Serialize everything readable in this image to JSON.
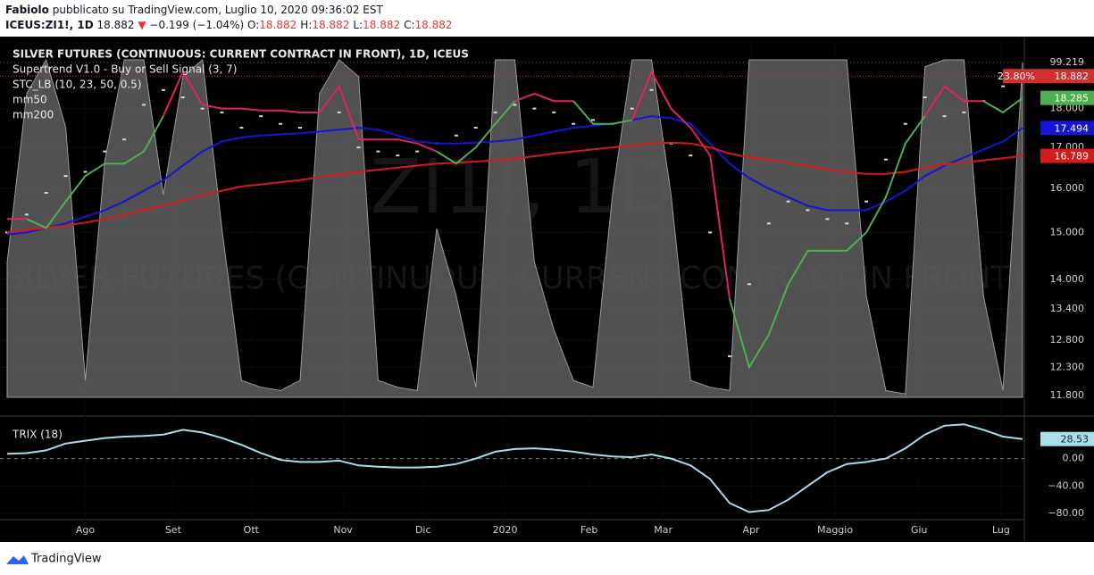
{
  "header": {
    "author": "Fabiolo",
    "published": "pubblicato su TradingView.com, Luglio 10, 2020 09:36:02 EST",
    "symbol": "ICEUS:ZI1!, 1D",
    "last": "18.882",
    "arrow": "▼",
    "change": "−0.199 (−1.04%)",
    "ohlc": [
      {
        "key": "O:",
        "value": "18.882"
      },
      {
        "key": "H:",
        "value": "18.882"
      },
      {
        "key": "L:",
        "value": "18.882"
      },
      {
        "key": "C:",
        "value": "18.882"
      }
    ]
  },
  "chart_data": [
    {
      "type": "line",
      "log_scale": true,
      "watermark": [
        "ZI1!, 1D",
        "SILVER FUTURES (CONTINUOUS: CURRENT CONTRACT IN FRONT)"
      ],
      "x": [
        0,
        1,
        2,
        3,
        4,
        5,
        6,
        7,
        8,
        9,
        10,
        11,
        12,
        13,
        14,
        15,
        16,
        17,
        18,
        19,
        20,
        21,
        22,
        23,
        24,
        25,
        26,
        27,
        28,
        29,
        30,
        31,
        32,
        33,
        34,
        35,
        36,
        37,
        38,
        39,
        40,
        41,
        42,
        43,
        44,
        45,
        46,
        47,
        48,
        49,
        50,
        51,
        52
      ],
      "xlim": [
        0,
        52
      ],
      "xticks": [
        {
          "value": 4.0,
          "label": "Ago"
        },
        {
          "value": 8.5,
          "label": "Set"
        },
        {
          "value": 12.5,
          "label": "Ott"
        },
        {
          "value": 17.2,
          "label": "Nov"
        },
        {
          "value": 21.3,
          "label": "Dic"
        },
        {
          "value": 25.5,
          "label": "2020"
        },
        {
          "value": 29.8,
          "label": "Feb"
        },
        {
          "value": 33.6,
          "label": "Mar"
        },
        {
          "value": 38.1,
          "label": "Apr"
        },
        {
          "value": 42.4,
          "label": "Maggio"
        },
        {
          "value": 46.7,
          "label": "Giu"
        },
        {
          "value": 50.9,
          "label": "Lug"
        }
      ],
      "ylim": [
        11.66,
        19.57
      ],
      "yticks": [
        {
          "value": 11.8,
          "label": "11.800"
        },
        {
          "value": 12.3,
          "label": "12.300"
        },
        {
          "value": 12.8,
          "label": "12.800"
        },
        {
          "value": 13.4,
          "label": "13.400"
        },
        {
          "value": 14,
          "label": "14.000"
        },
        {
          "value": 15,
          "label": "15.000"
        },
        {
          "value": 16,
          "label": "16.000"
        },
        {
          "value": 17,
          "label": "17.000"
        },
        {
          "value": 18,
          "label": "18.000"
        }
      ],
      "y2lim": [
        0,
        100
      ],
      "change_tag": {
        "value": 23.8,
        "label": "23.80%",
        "color": "#d32f2f"
      },
      "series": [
        {
          "name": "SILVER FUTURES (CONTINUOUS: CURRENT CONTRACT IN FRONT), 1D, ICEUS",
          "style": "dots",
          "color": "#d8d8d8",
          "tag_color": "#d32f2f",
          "values": [
            15.0,
            15.4,
            15.9,
            16.3,
            16.4,
            16.9,
            17.2,
            18.1,
            18.5,
            18.3,
            18.0,
            17.9,
            17.5,
            17.8,
            17.6,
            17.5,
            17.4,
            17.9,
            17.0,
            16.9,
            16.8,
            16.9,
            17.1,
            17.3,
            17.5,
            17.9,
            18.1,
            18.0,
            17.9,
            17.6,
            17.7,
            17.6,
            18.0,
            18.5,
            17.1,
            16.8,
            15.0,
            12.5,
            13.9,
            15.2,
            15.7,
            15.5,
            15.3,
            15.2,
            15.7,
            16.7,
            17.6,
            18.3,
            17.8,
            17.9,
            18.2,
            18.6,
            18.882
          ]
        },
        {
          "name": "Supertrend V1.0 - Buy or Sell Signal (3, 7)",
          "style": "colored-step",
          "values": [
            15.3,
            15.3,
            15.1,
            15.7,
            16.3,
            16.6,
            16.6,
            16.9,
            17.8,
            19.0,
            18.1,
            18.0,
            18.0,
            17.95,
            17.95,
            17.9,
            17.9,
            18.6,
            17.2,
            17.2,
            17.2,
            17.1,
            16.9,
            16.6,
            17.0,
            17.6,
            18.2,
            18.4,
            18.2,
            18.2,
            17.6,
            17.6,
            17.7,
            19.0,
            18.0,
            17.5,
            16.8,
            13.6,
            12.3,
            12.9,
            13.9,
            14.6,
            14.6,
            14.6,
            15.0,
            15.8,
            17.1,
            17.8,
            18.6,
            18.2,
            18.2,
            17.9,
            18.285
          ],
          "colors": [
            "#e0245e",
            "#e0245e",
            "#4caf50",
            "#4caf50",
            "#4caf50",
            "#4caf50",
            "#4caf50",
            "#4caf50",
            "#4caf50",
            "#e0245e",
            "#e0245e",
            "#e0245e",
            "#e0245e",
            "#e0245e",
            "#e0245e",
            "#e0245e",
            "#e0245e",
            "#e0245e",
            "#e0245e",
            "#e0245e",
            "#e0245e",
            "#e0245e",
            "#e0245e",
            "#4caf50",
            "#4caf50",
            "#4caf50",
            "#4caf50",
            "#e0245e",
            "#e0245e",
            "#e0245e",
            "#4caf50",
            "#4caf50",
            "#4caf50",
            "#e0245e",
            "#e0245e",
            "#e0245e",
            "#e0245e",
            "#e0245e",
            "#4caf50",
            "#4caf50",
            "#4caf50",
            "#4caf50",
            "#4caf50",
            "#4caf50",
            "#4caf50",
            "#4caf50",
            "#4caf50",
            "#4caf50",
            "#e0245e",
            "#e0245e",
            "#e0245e",
            "#4caf50",
            "#4caf50"
          ]
        },
        {
          "name": "STC_LB (10, 23, 50, 0.5)",
          "style": "area",
          "axis": "y2",
          "color": "#5f5f5f",
          "values": [
            40,
            90,
            100,
            80,
            5,
            70,
            100,
            100,
            60,
            95,
            100,
            50,
            5,
            3,
            2,
            5,
            90,
            100,
            95,
            5,
            3,
            2,
            50,
            30,
            3,
            100,
            100,
            40,
            20,
            5,
            3,
            60,
            100,
            100,
            60,
            5,
            3,
            2,
            100,
            100,
            100,
            100,
            100,
            100,
            30,
            2,
            1,
            98,
            100,
            100,
            30,
            2,
            99.219
          ]
        },
        {
          "name": "mm50",
          "style": "line",
          "color": "#1515d6",
          "values": [
            14.95,
            15.0,
            15.1,
            15.2,
            15.35,
            15.5,
            15.7,
            15.95,
            16.2,
            16.55,
            16.9,
            17.15,
            17.25,
            17.3,
            17.33,
            17.36,
            17.4,
            17.45,
            17.5,
            17.45,
            17.3,
            17.15,
            17.1,
            17.1,
            17.12,
            17.15,
            17.2,
            17.3,
            17.4,
            17.5,
            17.55,
            17.6,
            17.7,
            17.8,
            17.75,
            17.6,
            17.1,
            16.6,
            16.25,
            16.0,
            15.8,
            15.6,
            15.5,
            15.5,
            15.5,
            15.7,
            15.95,
            16.3,
            16.55,
            16.75,
            16.95,
            17.15,
            17.494
          ]
        },
        {
          "name": "mm200",
          "style": "line",
          "color": "#d61a1a",
          "values": [
            15.0,
            15.05,
            15.1,
            15.15,
            15.22,
            15.3,
            15.4,
            15.5,
            15.6,
            15.72,
            15.85,
            15.95,
            16.05,
            16.1,
            16.15,
            16.2,
            16.27,
            16.33,
            16.4,
            16.45,
            16.5,
            16.55,
            16.6,
            16.62,
            16.65,
            16.68,
            16.72,
            16.78,
            16.85,
            16.9,
            16.95,
            17.0,
            17.05,
            17.1,
            17.12,
            17.1,
            17.0,
            16.85,
            16.75,
            16.7,
            16.62,
            16.55,
            16.45,
            16.4,
            16.35,
            16.35,
            16.4,
            16.5,
            16.58,
            16.63,
            16.68,
            16.73,
            16.789
          ]
        }
      ]
    },
    {
      "type": "line",
      "x": [
        0,
        1,
        2,
        3,
        4,
        5,
        6,
        7,
        8,
        9,
        10,
        11,
        12,
        13,
        14,
        15,
        16,
        17,
        18,
        19,
        20,
        21,
        22,
        23,
        24,
        25,
        26,
        27,
        28,
        29,
        30,
        31,
        32,
        33,
        34,
        35,
        36,
        37,
        38,
        39,
        40,
        41,
        42,
        43,
        44,
        45,
        46,
        47,
        48,
        49,
        50,
        51,
        52
      ],
      "xlim": [
        0,
        52
      ],
      "ylim": [
        -86.5,
        56.8
      ],
      "yticks": [
        {
          "value": 0,
          "label": "0.00"
        },
        {
          "value": -40,
          "label": "−40.00"
        },
        {
          "value": -80,
          "label": "−80.00"
        }
      ],
      "series": [
        {
          "name": "TRIX (18)",
          "style": "line",
          "color": "#a8dde9",
          "tag_text": "#0a2a33",
          "values": [
            7,
            8,
            12,
            22,
            26,
            30,
            32,
            33,
            35,
            42,
            38,
            30,
            20,
            8,
            -2,
            -5,
            -5,
            -3,
            -10,
            -12,
            -13,
            -13,
            -12,
            -8,
            0,
            10,
            14,
            15,
            13,
            10,
            6,
            3,
            2,
            6,
            0,
            -10,
            -30,
            -65,
            -78,
            -75,
            -60,
            -40,
            -20,
            -8,
            -5,
            0,
            15,
            35,
            48,
            50,
            42,
            32,
            28.53
          ]
        }
      ]
    }
  ],
  "footer": {
    "brand": "TradingView"
  }
}
